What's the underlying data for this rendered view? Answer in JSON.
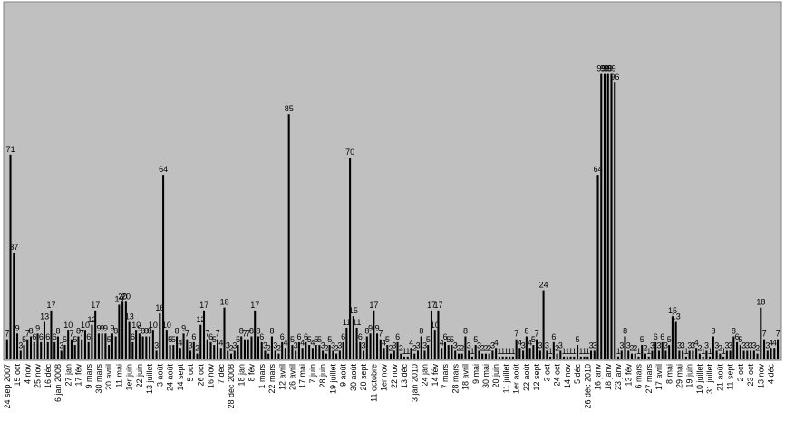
{
  "chart_data": {
    "type": "bar",
    "color": "#000000",
    "background": "#c0c0c0",
    "ylim": [
      0,
      124
    ],
    "categories": [
      "24 sep 2007",
      null,
      null,
      "15 oct",
      null,
      null,
      "4 nov",
      null,
      null,
      "25 nov",
      null,
      null,
      "16 déc",
      null,
      null,
      "6 jan 2008",
      null,
      null,
      "27 jan",
      null,
      null,
      "17 fév",
      null,
      null,
      "9 mars",
      null,
      null,
      "30 mars",
      null,
      null,
      "20 avril",
      null,
      null,
      "11 mai",
      null,
      null,
      "1er juin",
      null,
      null,
      "22 juin",
      null,
      null,
      "13 juillet",
      null,
      null,
      "3 août",
      null,
      null,
      "24 août",
      null,
      null,
      "14 sept",
      null,
      null,
      "5 oct",
      null,
      null,
      "26 oct",
      null,
      null,
      "16 nov",
      null,
      null,
      "7 déc",
      null,
      null,
      "28 déc 2008",
      null,
      null,
      "18 jan",
      null,
      null,
      "8 fév",
      null,
      null,
      "1 mars",
      null,
      null,
      "22 mars",
      null,
      null,
      "12 avril",
      null,
      null,
      "26 avril",
      null,
      null,
      "17 mai",
      null,
      null,
      "7 juin",
      null,
      null,
      "28 juin",
      null,
      null,
      "19 juillet",
      null,
      null,
      "9 août",
      null,
      null,
      "30 août",
      null,
      null,
      "20 sept",
      null,
      null,
      "11 octobre",
      null,
      null,
      "1er nov",
      null,
      null,
      "22 nov",
      null,
      null,
      "13 déc",
      null,
      null,
      "3 jan 2010",
      null,
      null,
      "24 jan",
      null,
      null,
      "14 fév",
      null,
      null,
      "7 mars",
      null,
      null,
      "28 mars",
      null,
      null,
      "18 avril",
      null,
      null,
      "9 mai",
      null,
      null,
      "30 mai",
      null,
      null,
      "20 juin",
      null,
      null,
      "11 juillet",
      null,
      null,
      "1er août",
      null,
      null,
      "22 août",
      null,
      null,
      "12 sept",
      null,
      null,
      "3 oct",
      null,
      null,
      "24 oct",
      null,
      null,
      "14 nov",
      null,
      null,
      "5 déc",
      null,
      null,
      "26 déc 2010",
      null,
      null,
      "16 janv",
      null,
      null,
      "18 janv",
      null,
      null,
      "23 janv",
      null,
      null,
      "13 fév",
      null,
      null,
      "6 mars",
      null,
      null,
      "27 mars",
      null,
      null,
      "17 avril",
      null,
      null,
      "8 mai",
      null,
      null,
      "29 mai",
      null,
      null,
      "19 juin",
      null,
      null,
      "10 juillet",
      null,
      null,
      "31 juillet",
      null,
      null,
      "21 août",
      null,
      null,
      "11 sept",
      null,
      null,
      "2 oct",
      null,
      null,
      "23 oct",
      null,
      null,
      "13 nov",
      null,
      null,
      "4 déc",
      null,
      null
    ],
    "values": [
      7,
      71,
      37,
      9,
      3,
      5,
      7,
      8,
      6,
      9,
      6,
      13,
      6,
      17,
      6,
      8,
      3,
      5,
      10,
      7,
      5,
      8,
      7,
      10,
      6,
      12,
      17,
      9,
      9,
      9,
      5,
      9,
      8,
      19,
      20,
      20,
      13,
      6,
      10,
      9,
      8,
      8,
      8,
      10,
      3,
      16,
      64,
      10,
      5,
      5,
      8,
      4,
      9,
      7,
      3,
      6,
      2,
      12,
      17,
      7,
      6,
      5,
      7,
      4,
      18,
      3,
      2,
      3,
      5,
      8,
      7,
      7,
      8,
      17,
      8,
      6,
      3,
      2,
      8,
      3,
      2,
      6,
      4,
      85,
      5,
      3,
      6,
      4,
      6,
      5,
      4,
      5,
      5,
      3,
      2,
      5,
      3,
      2,
      3,
      6,
      11,
      70,
      15,
      11,
      6,
      3,
      8,
      9,
      17,
      9,
      7,
      4,
      5,
      2,
      3,
      6,
      2,
      1,
      1,
      4,
      2,
      3,
      8,
      3,
      5,
      17,
      10,
      17,
      4,
      6,
      5,
      5,
      3,
      2,
      2,
      8,
      3,
      1,
      5,
      3,
      2,
      2,
      2,
      3,
      4,
      1,
      1,
      1,
      1,
      1,
      7,
      4,
      3,
      8,
      4,
      5,
      7,
      3,
      24,
      3,
      1,
      6,
      2,
      3,
      1,
      1,
      1,
      1,
      5,
      1,
      1,
      1,
      3,
      3,
      64,
      99,
      99,
      99,
      99,
      96,
      1,
      3,
      8,
      3,
      2,
      2,
      1,
      5,
      2,
      1,
      3,
      6,
      3,
      6,
      3,
      5,
      15,
      13,
      3,
      3,
      1,
      3,
      3,
      4,
      2,
      1,
      3,
      1,
      8,
      3,
      2,
      1,
      3,
      3,
      8,
      6,
      5,
      3,
      3,
      3,
      3,
      2,
      18,
      7,
      3,
      4,
      4,
      7
    ]
  }
}
